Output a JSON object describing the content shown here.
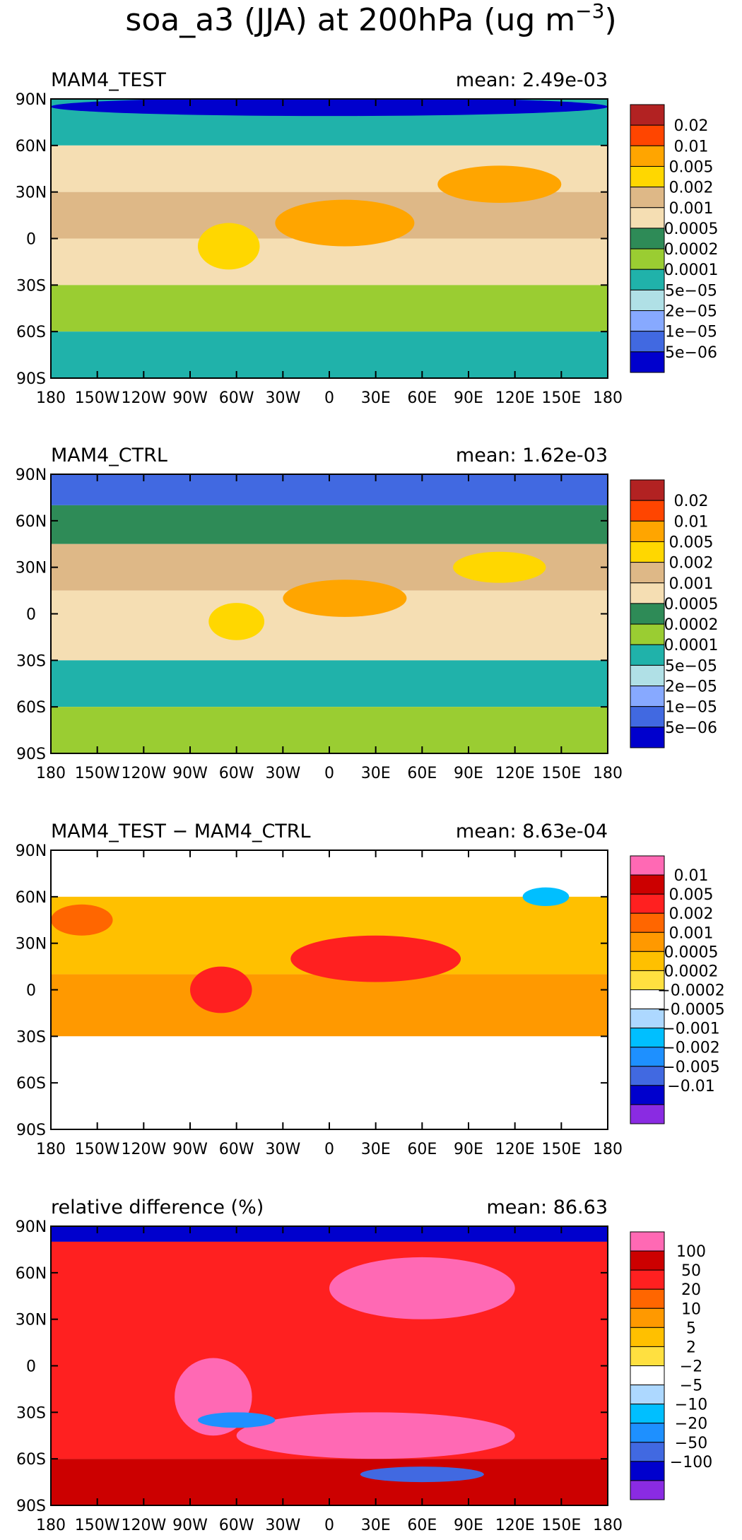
{
  "title_parts": {
    "main": "soa_a3 (JJA) at 200hPa (ug m",
    "sup": "−3",
    "close": ")"
  },
  "lon_ticks": [
    "180",
    "150W",
    "120W",
    "90W",
    "60W",
    "30W",
    "0",
    "30E",
    "60E",
    "90E",
    "120E",
    "150E",
    "180"
  ],
  "lat_ticks": [
    "90N",
    "60N",
    "30N",
    "0",
    "30S",
    "60S",
    "90S"
  ],
  "chart_data": [
    {
      "type": "heatmap",
      "title": "MAM4_TEST",
      "mean_label": "mean: 2.49e-03",
      "mean": 0.00249,
      "xlim": [
        -180,
        180
      ],
      "ylim": [
        -90,
        90
      ],
      "colorbar": {
        "labels": [
          "0.02",
          "0.01",
          "0.005",
          "0.002",
          "0.001",
          "0.0005",
          "0.0002",
          "0.0001",
          "5e−05",
          "2e−05",
          "1e−05",
          "5e−06"
        ],
        "colors": [
          "#b22222",
          "#ff4500",
          "#ffa500",
          "#ffd700",
          "#deb887",
          "#f5deb3",
          "#2e8b57",
          "#9acd32",
          "#20b2aa",
          "#b0e0e6",
          "#87a9ff",
          "#4169e1",
          "#0000cd"
        ]
      },
      "bands": [
        {
          "lat": [
            60,
            90
          ],
          "level": 8
        },
        {
          "lat": [
            30,
            60
          ],
          "level": 5
        },
        {
          "lat": [
            0,
            30
          ],
          "level": 4
        },
        {
          "lat": [
            -30,
            0
          ],
          "level": 5
        },
        {
          "lat": [
            -60,
            -30
          ],
          "level": 7
        },
        {
          "lat": [
            -90,
            -60
          ],
          "level": 8
        }
      ],
      "blobs": [
        {
          "lon": 10,
          "lat": 10,
          "rx": 45,
          "ry": 15,
          "level": 2
        },
        {
          "lon": 110,
          "lat": 35,
          "rx": 40,
          "ry": 12,
          "level": 2
        },
        {
          "lon": -65,
          "lat": -5,
          "rx": 20,
          "ry": 15,
          "level": 3
        },
        {
          "lon": 0,
          "lat": 85,
          "rx": 180,
          "ry": 6,
          "level": 12
        }
      ]
    },
    {
      "type": "heatmap",
      "title": "MAM4_CTRL",
      "mean_label": "mean: 1.62e-03",
      "mean": 0.00162,
      "xlim": [
        -180,
        180
      ],
      "ylim": [
        -90,
        90
      ],
      "colorbar": {
        "labels": [
          "0.02",
          "0.01",
          "0.005",
          "0.002",
          "0.001",
          "0.0005",
          "0.0002",
          "0.0001",
          "5e−05",
          "2e−05",
          "1e−05",
          "5e−06"
        ],
        "colors": [
          "#b22222",
          "#ff4500",
          "#ffa500",
          "#ffd700",
          "#deb887",
          "#f5deb3",
          "#2e8b57",
          "#9acd32",
          "#20b2aa",
          "#b0e0e6",
          "#87a9ff",
          "#4169e1",
          "#0000cd"
        ]
      },
      "bands": [
        {
          "lat": [
            70,
            90
          ],
          "level": 11
        },
        {
          "lat": [
            45,
            70
          ],
          "level": 6
        },
        {
          "lat": [
            15,
            45
          ],
          "level": 4
        },
        {
          "lat": [
            -30,
            15
          ],
          "level": 5
        },
        {
          "lat": [
            -60,
            -30
          ],
          "level": 8
        },
        {
          "lat": [
            -90,
            -60
          ],
          "level": 7
        }
      ],
      "blobs": [
        {
          "lon": 10,
          "lat": 10,
          "rx": 40,
          "ry": 12,
          "level": 2
        },
        {
          "lon": 110,
          "lat": 30,
          "rx": 30,
          "ry": 10,
          "level": 3
        },
        {
          "lon": -60,
          "lat": -5,
          "rx": 18,
          "ry": 12,
          "level": 3
        }
      ]
    },
    {
      "type": "heatmap",
      "title": "MAM4_TEST − MAM4_CTRL",
      "mean_label": "mean: 8.63e-04",
      "mean": 0.000863,
      "xlim": [
        -180,
        180
      ],
      "ylim": [
        -90,
        90
      ],
      "colorbar": {
        "labels": [
          "0.01",
          "0.005",
          "0.002",
          "0.001",
          "0.0005",
          "0.0002",
          "−0.0002",
          "−0.0005",
          "−0.001",
          "−0.002",
          "−0.005",
          "−0.01"
        ],
        "colors": [
          "#ff69b4",
          "#cc0000",
          "#ff2020",
          "#ff6600",
          "#ff9900",
          "#ffc000",
          "#ffe040",
          "#ffffff",
          "#add8ff",
          "#00bfff",
          "#1e90ff",
          "#4169e1",
          "#0000cd",
          "#8a2be2"
        ]
      },
      "bands": [
        {
          "lat": [
            60,
            90
          ],
          "level": 7
        },
        {
          "lat": [
            10,
            60
          ],
          "level": 5
        },
        {
          "lat": [
            -30,
            10
          ],
          "level": 4
        },
        {
          "lat": [
            -60,
            -30
          ],
          "level": 7
        },
        {
          "lat": [
            -90,
            -60
          ],
          "level": 7
        }
      ],
      "blobs": [
        {
          "lon": 30,
          "lat": 20,
          "rx": 55,
          "ry": 15,
          "level": 2
        },
        {
          "lon": -70,
          "lat": 0,
          "rx": 20,
          "ry": 15,
          "level": 2
        },
        {
          "lon": -160,
          "lat": 45,
          "rx": 20,
          "ry": 10,
          "level": 3
        },
        {
          "lon": 140,
          "lat": 60,
          "rx": 15,
          "ry": 6,
          "level": 9
        }
      ]
    },
    {
      "type": "heatmap",
      "title": "relative difference (%)",
      "mean_label": "mean: 86.63",
      "mean": 86.63,
      "xlim": [
        -180,
        180
      ],
      "ylim": [
        -90,
        90
      ],
      "colorbar": {
        "labels": [
          "100",
          "50",
          "20",
          "10",
          "5",
          "2",
          "−2",
          "−5",
          "−10",
          "−20",
          "−50",
          "−100"
        ],
        "colors": [
          "#ff69b4",
          "#cc0000",
          "#ff2020",
          "#ff6600",
          "#ff9900",
          "#ffc000",
          "#ffe040",
          "#ffffff",
          "#add8ff",
          "#00bfff",
          "#1e90ff",
          "#4169e1",
          "#0000cd",
          "#8a2be2"
        ]
      },
      "bands": [
        {
          "lat": [
            80,
            90
          ],
          "level": 12
        },
        {
          "lat": [
            -60,
            80
          ],
          "level": 2
        },
        {
          "lat": [
            -90,
            -60
          ],
          "level": 1
        }
      ],
      "blobs": [
        {
          "lon": 60,
          "lat": 50,
          "rx": 60,
          "ry": 20,
          "level": 0
        },
        {
          "lon": 30,
          "lat": -45,
          "rx": 90,
          "ry": 15,
          "level": 0
        },
        {
          "lon": -75,
          "lat": -20,
          "rx": 25,
          "ry": 25,
          "level": 0
        },
        {
          "lon": 60,
          "lat": -70,
          "rx": 40,
          "ry": 5,
          "level": 11
        },
        {
          "lon": -60,
          "lat": -35,
          "rx": 25,
          "ry": 5,
          "level": 10
        }
      ]
    }
  ]
}
